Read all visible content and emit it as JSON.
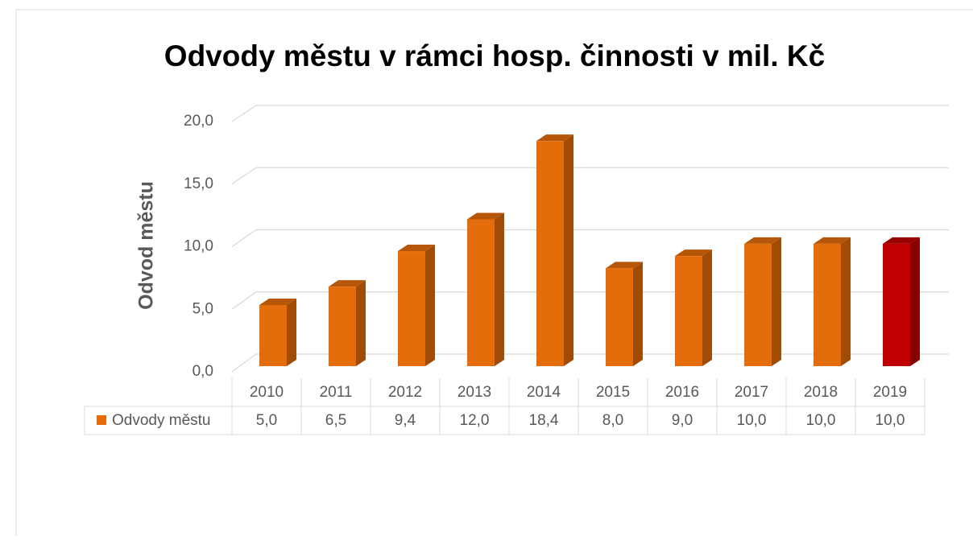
{
  "chart_data": {
    "type": "bar3d",
    "title": "Odvody městu v rámci hosp. činnosti v mil. Kč",
    "y_label": "Odvod městu",
    "categories": [
      "2010",
      "2011",
      "2012",
      "2013",
      "2014",
      "2015",
      "2016",
      "2017",
      "2018",
      "2019"
    ],
    "series": [
      {
        "name": "Odvody městu",
        "color": "#e46c0a",
        "colors": [
          "#e46c0a",
          "#e46c0a",
          "#e46c0a",
          "#e46c0a",
          "#e46c0a",
          "#e46c0a",
          "#e46c0a",
          "#e46c0a",
          "#e46c0a",
          "#c00000"
        ],
        "values": [
          5.0,
          6.5,
          9.4,
          12.0,
          18.4,
          8.0,
          9.0,
          10.0,
          10.0,
          10.0
        ],
        "value_labels": [
          "5,0",
          "6,5",
          "9,4",
          "12,0",
          "18,4",
          "8,0",
          "9,0",
          "10,0",
          "10,0",
          "10,0"
        ]
      }
    ],
    "ylim": [
      0,
      20
    ],
    "yticks": [
      {
        "value": 0,
        "label": "0,0"
      },
      {
        "value": 5,
        "label": "5,0"
      },
      {
        "value": 10,
        "label": "10,0"
      },
      {
        "value": 15,
        "label": "15,0"
      },
      {
        "value": 20,
        "label": "20,0"
      }
    ],
    "grid": true
  }
}
